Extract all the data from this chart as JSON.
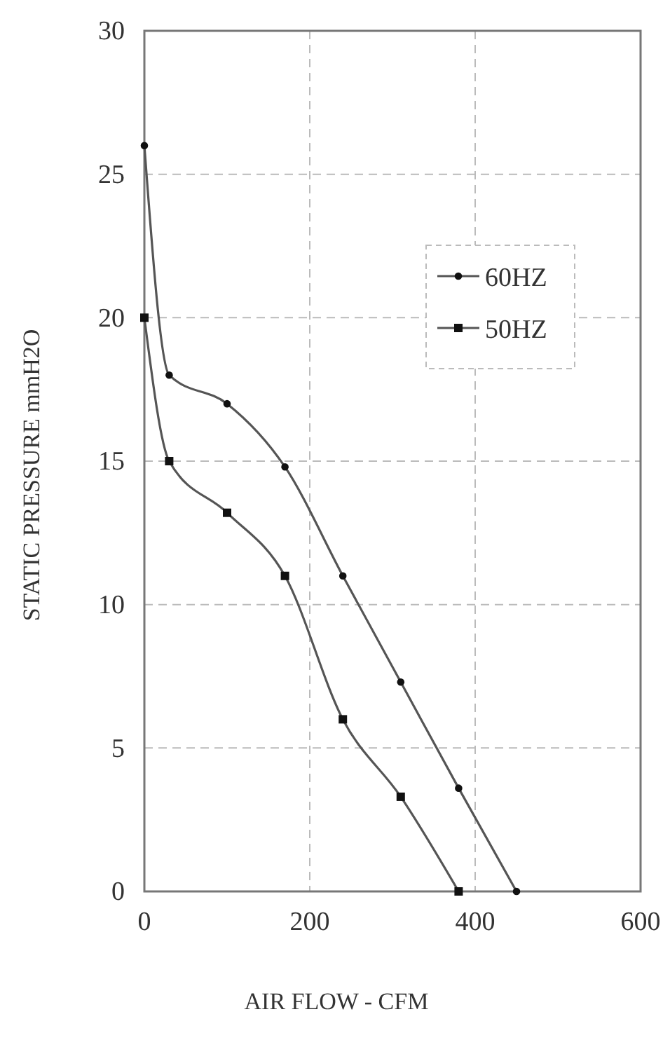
{
  "chart_data": {
    "type": "line",
    "xlabel": "AIR FLOW - CFM",
    "ylabel": "STATIC PRESSURE mmH2O",
    "xlim": [
      0,
      600
    ],
    "xticks": [
      0,
      200,
      400,
      600
    ],
    "ylim": [
      0,
      30
    ],
    "yticks": [
      0,
      5,
      10,
      15,
      20,
      25,
      30
    ],
    "grid": true,
    "legend": "top right",
    "series": [
      {
        "name": "60HZ",
        "color": "#555555",
        "marker": "circle",
        "x": [
          0,
          30,
          100,
          170,
          240,
          310,
          380,
          450
        ],
        "values": [
          26,
          18,
          17,
          14.8,
          11,
          7.3,
          3.6,
          0
        ]
      },
      {
        "name": "50HZ",
        "color": "#555555",
        "marker": "square",
        "x": [
          0,
          30,
          100,
          170,
          240,
          310,
          380
        ],
        "values": [
          20,
          15,
          13.2,
          11,
          6,
          3.3,
          0
        ]
      }
    ]
  }
}
